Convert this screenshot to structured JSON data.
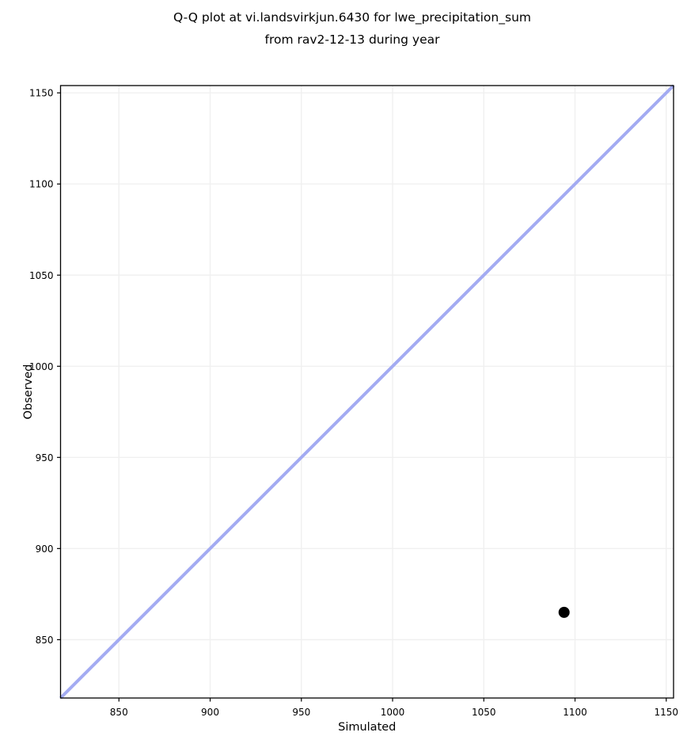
{
  "chart_data": {
    "type": "scatter",
    "title": "Q-Q plot at vi.landsvirkjun.6430 for lwe_precipitation_sum from rav2-12-13 during year",
    "title_lines": [
      "Q-Q plot at vi.landsvirkjun.6430 for lwe_precipitation_sum",
      "from rav2-12-13 during year"
    ],
    "xlabel": "Simulated",
    "ylabel": "Observed",
    "x_range": [
      818,
      1154
    ],
    "y_range": [
      818,
      1154
    ],
    "xticks": [
      850,
      900,
      950,
      1000,
      1050,
      1100,
      1150
    ],
    "yticks": [
      850,
      900,
      950,
      1000,
      1050,
      1100,
      1150
    ],
    "grid": true,
    "legend": false,
    "series": [
      {
        "name": "identity-line",
        "kind": "line",
        "color": "#a3abf2",
        "width": 4,
        "points": [
          {
            "x": 818,
            "y": 818
          },
          {
            "x": 1154,
            "y": 1154
          }
        ]
      },
      {
        "name": "quantile-points",
        "kind": "scatter",
        "marker": "circle",
        "color": "#000000",
        "radius": 7,
        "points": [
          {
            "x": 1094,
            "y": 865
          }
        ]
      }
    ]
  },
  "colors": {
    "background": "#ffffff",
    "grid": "#f0f0f0",
    "spine": "#000000",
    "tick": "#000000",
    "text": "#000000"
  }
}
